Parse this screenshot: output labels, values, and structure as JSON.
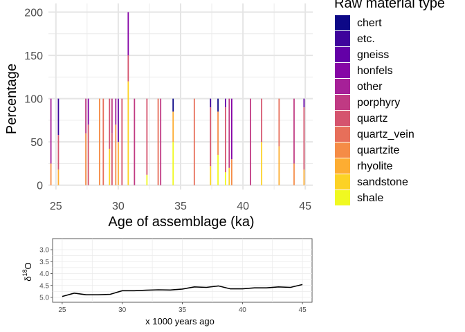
{
  "chart_data": [
    {
      "type": "bar",
      "stacked": true,
      "xlabel": "Age of assemblage (ka)",
      "ylabel": "Percentage",
      "xlim": [
        24.4,
        45.6
      ],
      "ylim": [
        -5,
        210
      ],
      "xticks": [
        25,
        30,
        35,
        40,
        45
      ],
      "yticks": [
        0,
        50,
        100,
        150,
        200
      ],
      "grid": true,
      "legend_title": "Raw material type",
      "legend_position": "right",
      "series": [
        {
          "name": "chert",
          "color": "#0D0887"
        },
        {
          "name": "etc.",
          "color": "#3E049C"
        },
        {
          "name": "gneiss",
          "color": "#6300A7"
        },
        {
          "name": "honfels",
          "color": "#8606A6"
        },
        {
          "name": "other",
          "color": "#A62098"
        },
        {
          "name": "porphyry",
          "color": "#C03A83"
        },
        {
          "name": "quartz",
          "color": "#D5546E"
        },
        {
          "name": "quartz_vein",
          "color": "#E76F5A"
        },
        {
          "name": "quartzite",
          "color": "#F58C46"
        },
        {
          "name": "rhyolite",
          "color": "#FDAD32"
        },
        {
          "name": "sandstone",
          "color": "#FCD225"
        },
        {
          "name": "shale",
          "color": "#F0F921"
        }
      ],
      "stacks": [
        {
          "x": 24.6,
          "segments": [
            [
              "quartzite",
              25
            ],
            [
              "other",
              75
            ]
          ]
        },
        {
          "x": 25.2,
          "segments": [
            [
              "rhyolite",
              18
            ],
            [
              "quartz",
              40
            ],
            [
              "etc.",
              42
            ]
          ]
        },
        {
          "x": 27.4,
          "segments": [
            [
              "quartzite",
              60
            ],
            [
              "porphyry",
              40
            ]
          ]
        },
        {
          "x": 27.6,
          "segments": [
            [
              "quartz",
              70
            ],
            [
              "honfels",
              30
            ]
          ]
        },
        {
          "x": 28.5,
          "segments": [
            [
              "quartzite",
              100
            ]
          ]
        },
        {
          "x": 28.8,
          "segments": [
            [
              "quartz_vein",
              100
            ]
          ]
        },
        {
          "x": 29.3,
          "segments": [
            [
              "sandstone",
              42
            ],
            [
              "quartz",
              58
            ]
          ]
        },
        {
          "x": 29.5,
          "segments": [
            [
              "quartz",
              60
            ],
            [
              "porphyry",
              40
            ]
          ]
        },
        {
          "x": 29.8,
          "segments": [
            [
              "quartzite",
              70
            ],
            [
              "other",
              30
            ]
          ]
        },
        {
          "x": 30.0,
          "segments": [
            [
              "rhyolite",
              50
            ],
            [
              "gneiss",
              50
            ]
          ]
        },
        {
          "x": 30.3,
          "segments": [
            [
              "quartz",
              100
            ]
          ]
        },
        {
          "x": 30.8,
          "segments": [
            [
              "sandstone",
              120
            ],
            [
              "quartz",
              30
            ],
            [
              "honfels",
              50
            ]
          ]
        },
        {
          "x": 31.3,
          "segments": [
            [
              "porphyry",
              100
            ]
          ]
        },
        {
          "x": 32.3,
          "segments": [
            [
              "shale",
              12
            ],
            [
              "quartz",
              88
            ]
          ]
        },
        {
          "x": 33.2,
          "segments": [
            [
              "quartz_vein",
              100
            ]
          ]
        },
        {
          "x": 33.4,
          "segments": [
            [
              "porphyry",
              100
            ]
          ]
        },
        {
          "x": 34.4,
          "segments": [
            [
              "shale",
              50
            ],
            [
              "rhyolite",
              35
            ],
            [
              "chert",
              15
            ]
          ]
        },
        {
          "x": 36.1,
          "segments": [
            [
              "quartz_vein",
              100
            ]
          ]
        },
        {
          "x": 37.4,
          "segments": [
            [
              "sandstone",
              22
            ],
            [
              "quartz",
              68
            ],
            [
              "etc.",
              10
            ]
          ]
        },
        {
          "x": 38.0,
          "segments": [
            [
              "shale",
              35
            ],
            [
              "quartzite",
              50
            ],
            [
              "chert",
              15
            ]
          ]
        },
        {
          "x": 38.6,
          "segments": [
            [
              "shale",
              15
            ],
            [
              "quartz",
              75
            ],
            [
              "gneiss",
              10
            ]
          ]
        },
        {
          "x": 38.9,
          "segments": [
            [
              "sandstone",
              20
            ],
            [
              "porphyry",
              80
            ]
          ]
        },
        {
          "x": 39.1,
          "segments": [
            [
              "quartzite",
              30
            ],
            [
              "honfels",
              70
            ]
          ]
        },
        {
          "x": 40.6,
          "segments": [
            [
              "porphyry",
              100
            ]
          ]
        },
        {
          "x": 41.5,
          "segments": [
            [
              "sandstone",
              50
            ],
            [
              "quartz",
              50
            ]
          ]
        },
        {
          "x": 42.9,
          "segments": [
            [
              "rhyolite",
              45
            ],
            [
              "quartz_vein",
              55
            ]
          ]
        },
        {
          "x": 44.1,
          "segments": [
            [
              "quartzite",
              25
            ],
            [
              "porphyry",
              75
            ]
          ]
        },
        {
          "x": 44.9,
          "segments": [
            [
              "rhyolite",
              18
            ],
            [
              "quartz",
              72
            ],
            [
              "gneiss",
              10
            ]
          ]
        }
      ]
    },
    {
      "type": "line",
      "xlabel": "x 1000 years ago",
      "ylabel_main": "δ",
      "ylabel_sup": "18",
      "ylabel_tail": "O",
      "xlim": [
        24.2,
        45.8
      ],
      "ylim": [
        3.0,
        5.0
      ],
      "y_reversed": true,
      "xticks": [
        25,
        30,
        35,
        40,
        45
      ],
      "yticks": [
        "3.0",
        "3.5",
        "4.0",
        "4.5",
        "5.0"
      ],
      "grid": true,
      "x": [
        25,
        26,
        27,
        28,
        29,
        30,
        31,
        32,
        33,
        34,
        35,
        36,
        37,
        38,
        39,
        40,
        41,
        42,
        43,
        44,
        45
      ],
      "y": [
        4.96,
        4.82,
        4.89,
        4.89,
        4.87,
        4.72,
        4.72,
        4.7,
        4.68,
        4.69,
        4.65,
        4.56,
        4.58,
        4.52,
        4.64,
        4.64,
        4.6,
        4.6,
        4.56,
        4.58,
        4.46
      ]
    }
  ]
}
